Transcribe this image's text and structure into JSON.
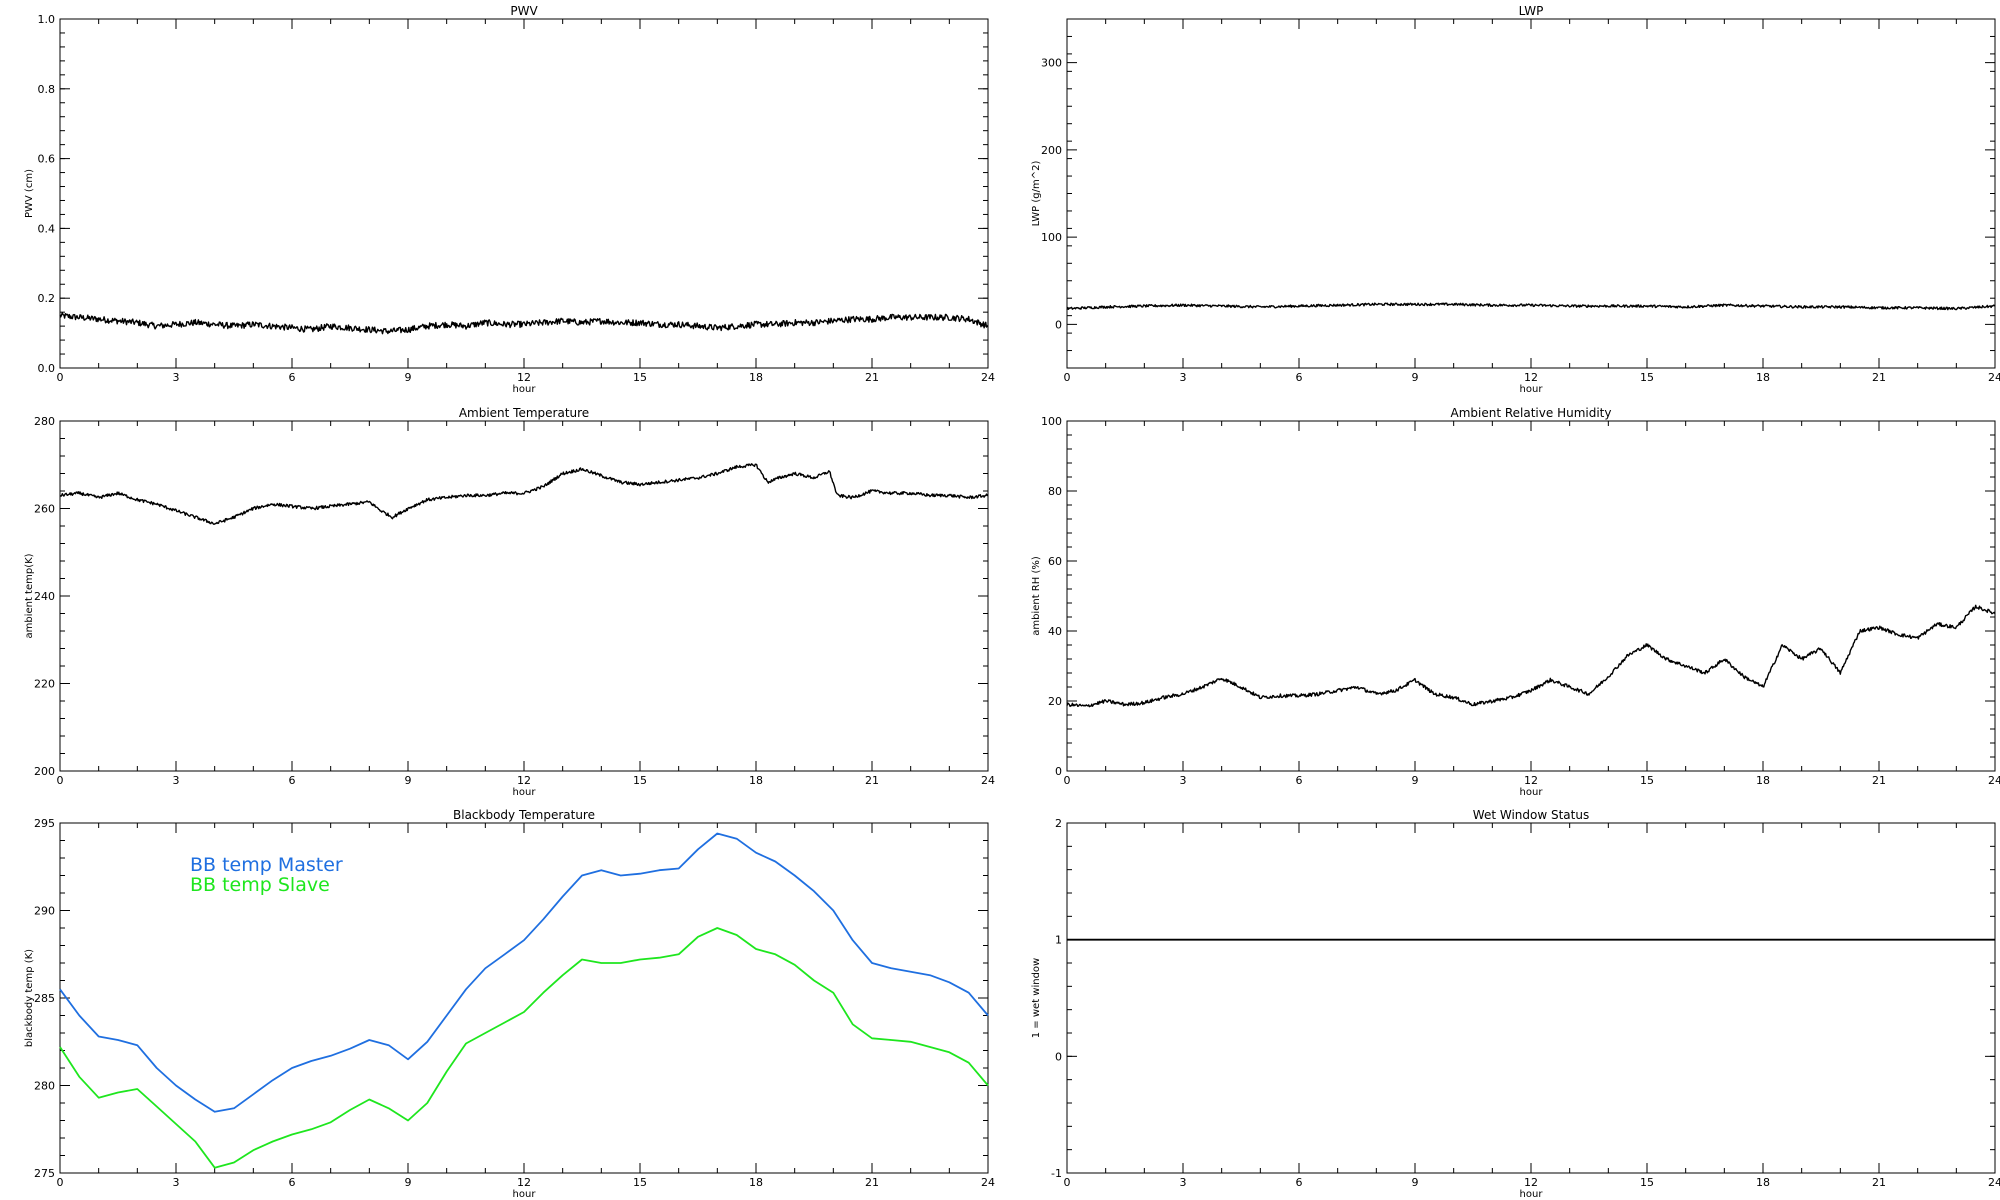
{
  "colors": {
    "axis": "#000000",
    "master": "#1f6fe0",
    "slave": "#1ee61e",
    "background": "#ffffff"
  },
  "chart_data": [
    {
      "id": "pwv",
      "type": "line",
      "title": "PWV",
      "xlabel": "hour",
      "ylabel": "PWV (cm)",
      "xlim": [
        0,
        24
      ],
      "ylim": [
        0.0,
        1.0
      ],
      "xticks": [
        0,
        3,
        6,
        9,
        12,
        15,
        18,
        21,
        24
      ],
      "yticks": [
        0.0,
        0.2,
        0.4,
        0.6,
        0.8,
        1.0
      ],
      "ytick_labels": [
        "0.0",
        "0.2",
        "0.4",
        "0.6",
        "0.8",
        "1.0"
      ],
      "noise": 0.009,
      "series": [
        {
          "color": "#000000",
          "x": [
            0,
            0.5,
            1,
            1.5,
            2,
            2.5,
            3,
            3.5,
            4,
            4.5,
            5,
            5.5,
            6,
            6.5,
            7,
            7.5,
            8,
            8.5,
            9,
            9.5,
            10,
            10.5,
            11,
            11.5,
            12,
            12.5,
            13,
            13.5,
            14,
            14.5,
            15,
            15.5,
            16,
            16.5,
            17,
            17.5,
            18,
            18.5,
            19,
            19.5,
            20,
            20.5,
            21,
            21.5,
            22,
            22.5,
            23,
            23.5,
            24
          ],
          "y": [
            0.15,
            0.145,
            0.14,
            0.135,
            0.13,
            0.12,
            0.125,
            0.13,
            0.125,
            0.12,
            0.125,
            0.12,
            0.115,
            0.11,
            0.12,
            0.115,
            0.11,
            0.105,
            0.11,
            0.12,
            0.125,
            0.12,
            0.13,
            0.125,
            0.125,
            0.13,
            0.135,
            0.13,
            0.135,
            0.13,
            0.13,
            0.125,
            0.125,
            0.12,
            0.115,
            0.12,
            0.125,
            0.125,
            0.13,
            0.13,
            0.135,
            0.14,
            0.14,
            0.145,
            0.145,
            0.145,
            0.145,
            0.14,
            0.12
          ]
        }
      ]
    },
    {
      "id": "lwp",
      "type": "line",
      "title": "LWP",
      "xlabel": "hour",
      "ylabel": "LWP (g/m^2)",
      "xlim": [
        0,
        24
      ],
      "ylim": [
        -50,
        350
      ],
      "xticks": [
        0,
        3,
        6,
        9,
        12,
        15,
        18,
        21,
        24
      ],
      "yticks": [
        0,
        100,
        200,
        300
      ],
      "ytick_labels": [
        "0",
        "100",
        "200",
        "300"
      ],
      "noise": 1.4,
      "series": [
        {
          "color": "#000000",
          "x": [
            0,
            1,
            2,
            3,
            4,
            5,
            6,
            7,
            8,
            9,
            10,
            11,
            12,
            13,
            14,
            15,
            16,
            17,
            18,
            19,
            20,
            21,
            22,
            23,
            24
          ],
          "y": [
            18,
            20,
            21,
            22,
            21,
            20,
            21,
            22,
            23,
            23,
            23,
            22,
            22,
            21,
            21,
            21,
            20,
            22,
            21,
            20,
            20,
            19,
            19,
            18,
            21
          ]
        }
      ]
    },
    {
      "id": "ambient-temperature",
      "type": "line",
      "title": "Ambient Temperature",
      "xlabel": "hour",
      "ylabel": "ambient temp(K)",
      "xlim": [
        0,
        24
      ],
      "ylim": [
        200,
        280
      ],
      "xticks": [
        0,
        3,
        6,
        9,
        12,
        15,
        18,
        21,
        24
      ],
      "yticks": [
        200,
        220,
        240,
        260,
        280
      ],
      "ytick_labels": [
        "200",
        "220",
        "240",
        "260",
        "280"
      ],
      "noise": 0.35,
      "series": [
        {
          "color": "#000000",
          "x": [
            0,
            0.5,
            1,
            1.5,
            2,
            2.5,
            3,
            3.5,
            4,
            4.5,
            5,
            5.5,
            6,
            6.5,
            7,
            7.5,
            8,
            8.3,
            8.6,
            9,
            9.5,
            10,
            10.5,
            11,
            11.5,
            12,
            12.5,
            13,
            13.5,
            14,
            14.5,
            15,
            15.5,
            16,
            16.5,
            17,
            17.5,
            18,
            18.3,
            18.6,
            19,
            19.5,
            19.9,
            20.1,
            20.5,
            21,
            21.5,
            22,
            22.5,
            23,
            23.5,
            24
          ],
          "y": [
            263,
            263.5,
            262.5,
            263.5,
            262,
            261,
            259.5,
            258,
            256.5,
            258,
            260,
            261,
            260.5,
            260,
            260.5,
            261,
            261.5,
            259.5,
            258,
            260,
            262,
            262.5,
            263,
            263,
            263.5,
            263.5,
            265,
            268,
            269,
            267.5,
            266,
            265.5,
            266,
            266.5,
            267,
            268,
            269.5,
            270,
            266,
            267,
            268,
            267,
            268.5,
            263,
            262.5,
            264,
            263.5,
            263.5,
            263,
            263,
            262.5,
            263
          ]
        }
      ]
    },
    {
      "id": "ambient-relative-humidity",
      "type": "line",
      "title": "Ambient Relative Humidity",
      "xlabel": "hour",
      "ylabel": "ambient RH (%)",
      "xlim": [
        0,
        24
      ],
      "ylim": [
        0,
        100
      ],
      "xticks": [
        0,
        3,
        6,
        9,
        12,
        15,
        18,
        21,
        24
      ],
      "yticks": [
        0,
        20,
        40,
        60,
        80,
        100
      ],
      "ytick_labels": [
        "0",
        "20",
        "40",
        "60",
        "80",
        "100"
      ],
      "noise": 0.5,
      "series": [
        {
          "color": "#000000",
          "x": [
            0,
            0.5,
            1,
            1.5,
            2,
            2.5,
            3,
            3.5,
            4,
            4.5,
            5,
            5.5,
            6,
            6.5,
            7,
            7.5,
            8,
            8.5,
            9,
            9.5,
            10,
            10.5,
            11,
            11.5,
            12,
            12.5,
            13,
            13.5,
            14,
            14.5,
            15,
            15.5,
            16,
            16.5,
            17,
            17.5,
            18,
            18.5,
            19,
            19.5,
            20,
            20.5,
            21,
            21.5,
            22,
            22.5,
            23,
            23.5,
            24
          ],
          "y": [
            19,
            18.5,
            20,
            19,
            19.5,
            21,
            22,
            24,
            26.5,
            24,
            21,
            21.5,
            21.5,
            22,
            23,
            24,
            22,
            23,
            26,
            22,
            21,
            19,
            20,
            21,
            23,
            26,
            24,
            22,
            27,
            33,
            36,
            32,
            30,
            28,
            32,
            27,
            24,
            36,
            32,
            35,
            28,
            40,
            41,
            39,
            38,
            42,
            41,
            47,
            45
          ]
        }
      ]
    },
    {
      "id": "blackbody-temperature",
      "type": "line",
      "title": "Blackbody Temperature",
      "xlabel": "hour",
      "ylabel": "blackbody temp (K)",
      "xlim": [
        0,
        24
      ],
      "ylim": [
        275,
        295
      ],
      "xticks": [
        0,
        3,
        6,
        9,
        12,
        15,
        18,
        21,
        24
      ],
      "yticks": [
        275,
        280,
        285,
        290,
        295
      ],
      "ytick_labels": [
        "275",
        "280",
        "285",
        "290",
        "295"
      ],
      "noise": 0,
      "legend": [
        "BB temp Master",
        "BB temp Slave"
      ],
      "series": [
        {
          "name": "BB temp Master",
          "color": "#1f6fe0",
          "x": [
            0,
            0.5,
            1,
            1.5,
            2,
            2.5,
            3,
            3.5,
            4,
            4.5,
            5,
            5.5,
            6,
            6.5,
            7,
            7.5,
            8,
            8.5,
            9,
            9.5,
            10,
            10.5,
            11,
            11.5,
            12,
            12.5,
            13,
            13.5,
            14,
            14.5,
            15,
            15.5,
            16,
            16.5,
            17,
            17.5,
            18,
            18.5,
            19,
            19.5,
            20,
            20.5,
            21,
            21.5,
            22,
            22.5,
            23,
            23.5,
            24
          ],
          "y": [
            285.5,
            284,
            282.8,
            282.6,
            282.3,
            281,
            280,
            279.2,
            278.5,
            278.7,
            279.5,
            280.3,
            281,
            281.4,
            281.7,
            282.1,
            282.6,
            282.3,
            281.5,
            282.5,
            284,
            285.5,
            286.7,
            287.5,
            288.3,
            289.5,
            290.8,
            292,
            292.3,
            292,
            292.1,
            292.3,
            292.4,
            293.5,
            294.4,
            294.1,
            293.3,
            292.8,
            292,
            291.1,
            290,
            288.3,
            287,
            286.7,
            286.5,
            286.3,
            285.9,
            285.3,
            284
          ]
        },
        {
          "name": "BB temp Slave",
          "color": "#1ee61e",
          "x": [
            0,
            0.5,
            1,
            1.5,
            2,
            2.5,
            3,
            3.5,
            4,
            4.5,
            5,
            5.5,
            6,
            6.5,
            7,
            7.5,
            8,
            8.5,
            9,
            9.5,
            10,
            10.5,
            11,
            11.5,
            12,
            12.5,
            13,
            13.5,
            14,
            14.5,
            15,
            15.5,
            16,
            16.5,
            17,
            17.5,
            18,
            18.5,
            19,
            19.5,
            20,
            20.5,
            21,
            21.5,
            22,
            22.5,
            23,
            23.5,
            24
          ],
          "y": [
            282.2,
            280.5,
            279.3,
            279.6,
            279.8,
            278.8,
            277.8,
            276.8,
            275.3,
            275.6,
            276.3,
            276.8,
            277.2,
            277.5,
            277.9,
            278.6,
            279.2,
            278.7,
            278,
            279,
            280.8,
            282.4,
            283,
            283.6,
            284.2,
            285.3,
            286.3,
            287.2,
            287,
            287,
            287.2,
            287.3,
            287.5,
            288.5,
            289,
            288.6,
            287.8,
            287.5,
            286.9,
            286,
            285.3,
            283.5,
            282.7,
            282.6,
            282.5,
            282.2,
            281.9,
            281.3,
            280
          ]
        }
      ]
    },
    {
      "id": "wet-window-status",
      "type": "line",
      "title": "Wet Window Status",
      "xlabel": "hour",
      "ylabel": "1 = wet window",
      "xlim": [
        0,
        24
      ],
      "ylim": [
        -1,
        2
      ],
      "xticks": [
        0,
        3,
        6,
        9,
        12,
        15,
        18,
        21,
        24
      ],
      "yticks": [
        -1,
        0,
        1,
        2
      ],
      "ytick_labels": [
        "-1",
        "0",
        "1",
        "2"
      ],
      "noise": 0,
      "series": [
        {
          "color": "#000000",
          "x": [
            0,
            24
          ],
          "y": [
            1,
            1
          ]
        }
      ]
    }
  ]
}
